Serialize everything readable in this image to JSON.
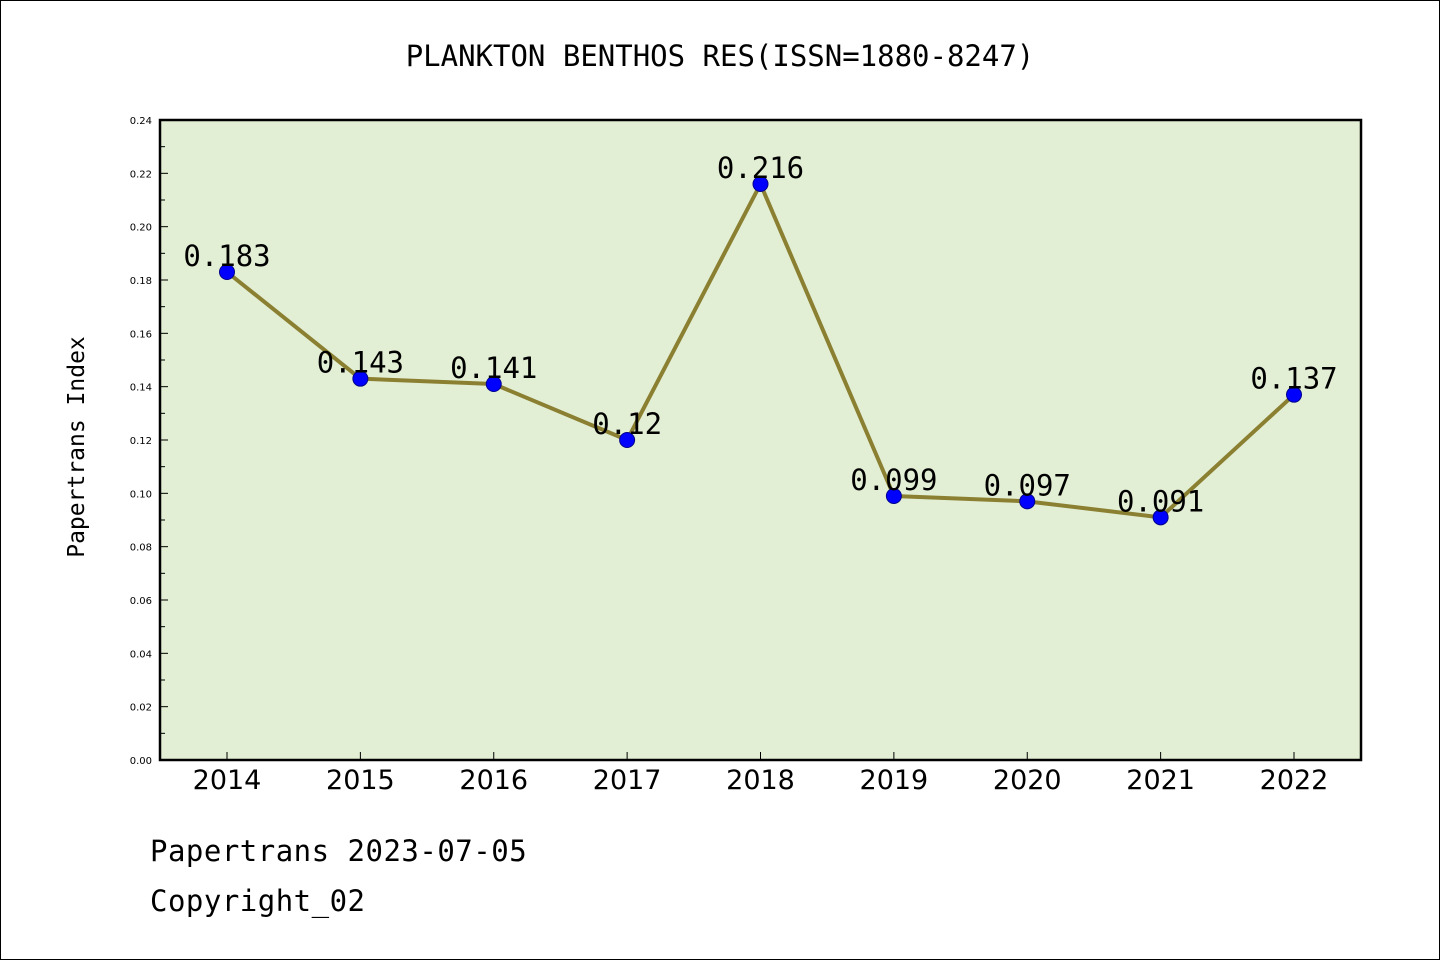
{
  "footer": {
    "line1": "Papertrans 2023-07-05",
    "line2": "Copyright_02"
  },
  "colors": {
    "plot_background": "#e2efd4",
    "line": "#8b8032",
    "marker": "#0000ff",
    "axes": "#000000"
  },
  "chart_data": {
    "type": "line",
    "title": "PLANKTON BENTHOS RES(ISSN=1880-8247)",
    "xlabel": "",
    "ylabel": "Papertrans Index",
    "categories": [
      "2014",
      "2015",
      "2016",
      "2017",
      "2018",
      "2019",
      "2020",
      "2021",
      "2022"
    ],
    "values": [
      0.183,
      0.143,
      0.141,
      0.12,
      0.216,
      0.099,
      0.097,
      0.091,
      0.137
    ],
    "data_labels": [
      "0.183",
      "0.143",
      "0.141",
      "0.12",
      "0.216",
      "0.099",
      "0.097",
      "0.091",
      "0.137"
    ],
    "ylim": [
      0,
      0.24
    ],
    "yticks": [
      "0.00",
      "0.02",
      "0.04",
      "0.06",
      "0.08",
      "0.10",
      "0.12",
      "0.14",
      "0.16",
      "0.18",
      "0.20",
      "0.22",
      "0.24"
    ],
    "grid": false,
    "legend": "none"
  }
}
